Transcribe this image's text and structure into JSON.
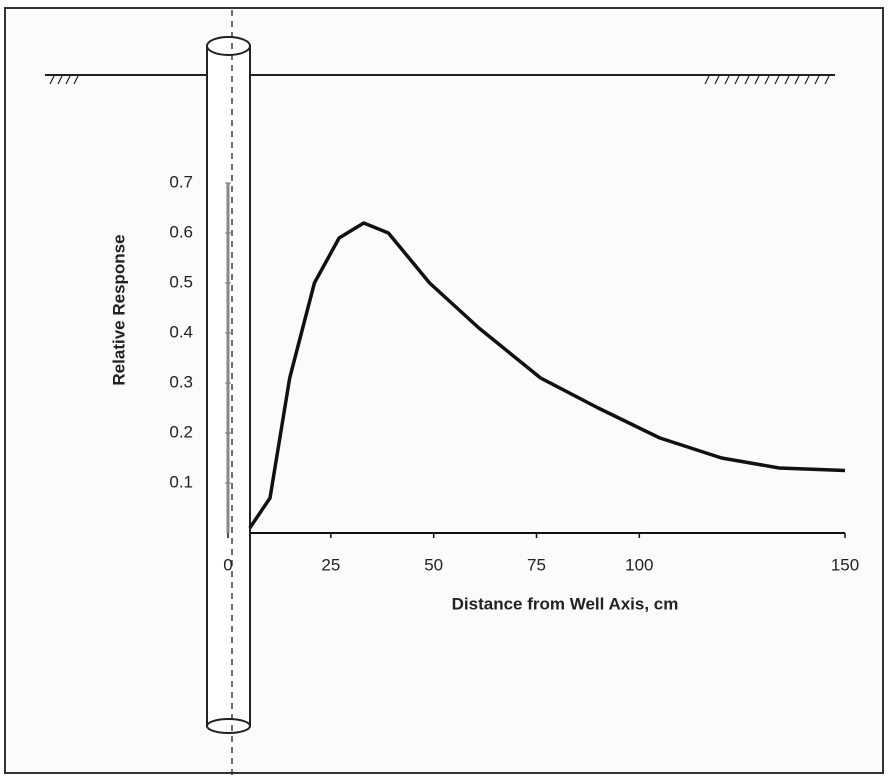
{
  "chart_data": {
    "type": "line",
    "x_label": "Distance from Well Axis, cm",
    "y_label": "Relative Response",
    "x": [
      5.3,
      10.2,
      15,
      21,
      27,
      33,
      39,
      49,
      61,
      76,
      90,
      105,
      120,
      134,
      150
    ],
    "series": [
      {
        "color": "#111111",
        "values": [
          0.01,
          0.07,
          0.31,
          0.5,
          0.59,
          0.62,
          0.6,
          0.5,
          0.41,
          0.31,
          0.25,
          0.19,
          0.15,
          0.13,
          0.125
        ]
      }
    ],
    "xlim": [
      0,
      150
    ],
    "xticks": [
      0,
      25,
      50,
      75,
      100,
      150
    ],
    "ylim": [
      0,
      0.7
    ],
    "yticks": [
      0.1,
      0.2,
      0.3,
      0.4,
      0.5,
      0.6,
      0.7
    ],
    "grid": false
  }
}
